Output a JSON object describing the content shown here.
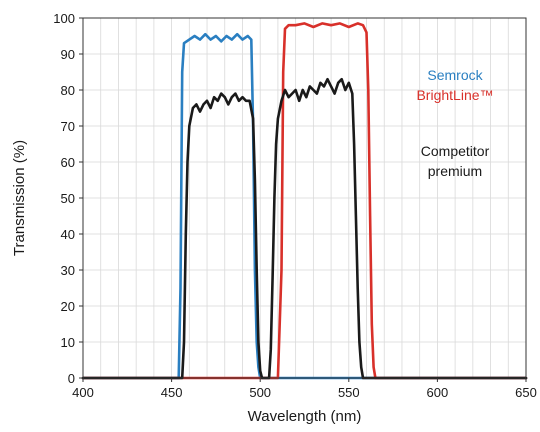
{
  "chart_data": {
    "type": "line",
    "title": "",
    "xlabel": "Wavelength (nm)",
    "ylabel": "Transmission (%)",
    "xlim": [
      400,
      650
    ],
    "ylim": [
      0,
      100
    ],
    "xticks": [
      400,
      450,
      500,
      550,
      600,
      650
    ],
    "yticks": [
      0,
      10,
      20,
      30,
      40,
      50,
      60,
      70,
      80,
      90,
      100
    ],
    "grid": true,
    "legend_position": "right",
    "series": [
      {
        "name": "Semrock",
        "color": "#2a7fc1",
        "x": [
          400,
          454,
          455,
          456,
          457,
          460,
          463,
          466,
          469,
          472,
          475,
          478,
          481,
          484,
          487,
          490,
          493,
          495,
          496,
          497,
          498,
          499,
          500,
          505,
          650
        ],
        "y": [
          0,
          0,
          25,
          85,
          93,
          94,
          95,
          94,
          95.5,
          94,
          95,
          93.5,
          95,
          94,
          95.5,
          94,
          95,
          94,
          70,
          30,
          10,
          3,
          0,
          0,
          0
        ]
      },
      {
        "name": "BrightLine™",
        "color": "#d8302a",
        "x": [
          400,
          510,
          512,
          513,
          514,
          516,
          520,
          525,
          530,
          535,
          540,
          545,
          550,
          555,
          558,
          560,
          561,
          562,
          563,
          564,
          565,
          650
        ],
        "y": [
          0,
          0,
          30,
          85,
          97,
          98,
          98,
          98.5,
          97.5,
          98.5,
          98,
          98.5,
          97.5,
          98.5,
          98,
          96,
          80,
          45,
          15,
          3,
          0,
          0
        ]
      },
      {
        "name": "Competitor premium",
        "color": "#1a1a1a",
        "x": [
          400,
          456,
          457,
          458,
          459,
          460,
          462,
          464,
          466,
          468,
          470,
          472,
          474,
          476,
          478,
          480,
          482,
          484,
          486,
          488,
          490,
          492,
          494,
          496,
          497,
          498,
          499,
          500,
          501,
          505,
          506,
          507,
          508,
          509,
          510,
          512,
          514,
          516,
          518,
          520,
          522,
          524,
          526,
          528,
          530,
          532,
          534,
          536,
          538,
          540,
          542,
          544,
          546,
          548,
          550,
          552,
          553,
          554,
          555,
          556,
          557,
          558,
          560,
          650
        ],
        "y": [
          0,
          0,
          10,
          40,
          60,
          70,
          75,
          76,
          74,
          76,
          77,
          75,
          78,
          77,
          79,
          78,
          76,
          78,
          79,
          77,
          78,
          77,
          77,
          72,
          55,
          30,
          10,
          2,
          0,
          0,
          8,
          28,
          50,
          65,
          72,
          77,
          80,
          78,
          79,
          80,
          77,
          80,
          78,
          81,
          80,
          79,
          82,
          81,
          83,
          81,
          79,
          82,
          83,
          80,
          82,
          79,
          65,
          45,
          25,
          10,
          3,
          0,
          0,
          0
        ]
      }
    ]
  },
  "legend_lines": [
    {
      "text": "Semrock",
      "color": "#2a7fc1"
    },
    {
      "text": "BrightLine™",
      "color": "#d8302a"
    },
    {
      "text": "Competitor",
      "color": "#1a1a1a"
    },
    {
      "text": "premium",
      "color": "#1a1a1a"
    }
  ]
}
